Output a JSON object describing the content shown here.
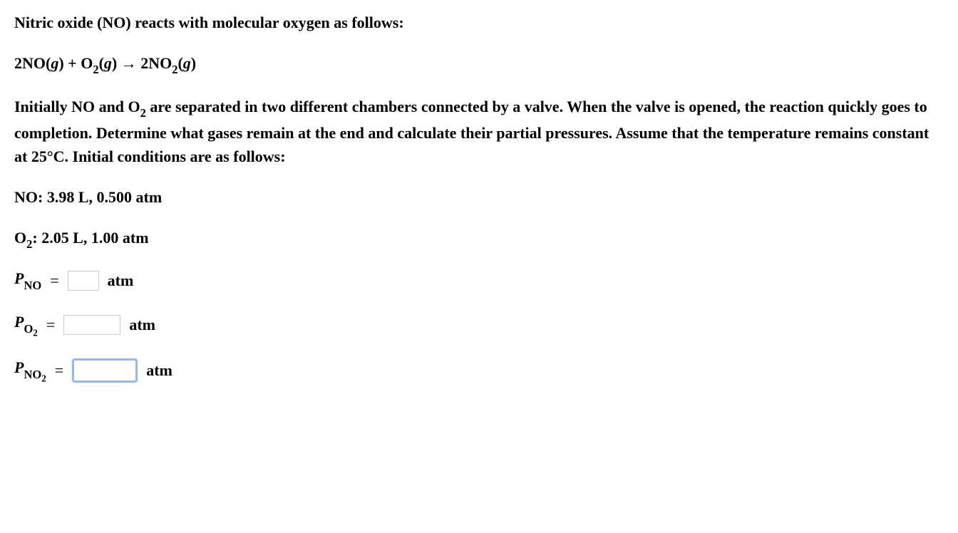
{
  "intro": "Nitric oxide (NO) reacts with molecular oxygen as follows:",
  "equation": {
    "lhs_coeff1": "2NO(",
    "lhs_state1": "g",
    "lhs_close1": ") + O",
    "lhs_sub1": "2",
    "lhs_open2": "(",
    "lhs_state2": "g",
    "lhs_close2": ") ",
    "arrow": "→",
    "rhs": " 2NO",
    "rhs_sub": "2",
    "rhs_open": "(",
    "rhs_state": "g",
    "rhs_close": ")"
  },
  "description_part1": "Initially NO and O",
  "description_sub1": "2",
  "description_part2": " are separated in two different chambers connected by a valve. When the valve is opened, the reaction quickly goes to completion. Determine what gases remain at the end and calculate their partial pressures. Assume that the temperature remains constant at 25°C. Initial conditions are as follows:",
  "conditions": {
    "no": "NO: 3.98 L, 0.500 atm",
    "o2_prefix": "O",
    "o2_sub": "2",
    "o2_rest": ": 2.05 L, 1.00 atm"
  },
  "answers": {
    "p_label": "P",
    "no_sub": "NO",
    "o2_sub": "O",
    "o2_sub2": "2",
    "no2_sub": "NO",
    "no2_sub2": "2",
    "equals": "=",
    "unit": "atm",
    "value_no": "",
    "value_o2": "",
    "value_no2": ""
  }
}
